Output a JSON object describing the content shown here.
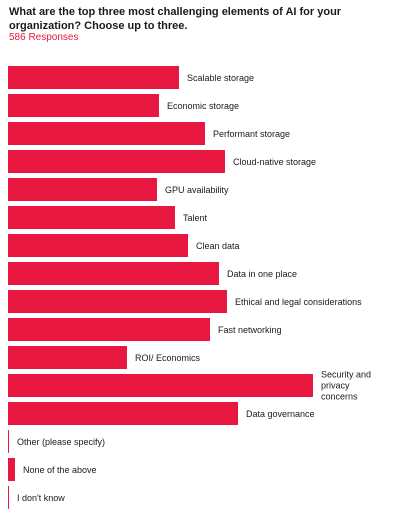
{
  "chart_data": {
    "type": "bar",
    "orientation": "horizontal",
    "title": "What are the top three most challenging elements of AI for your organization? Choose up to three.",
    "subtitle": "586 Responses",
    "bar_color": "#e8173f",
    "categories": [
      "Scalable storage",
      "Economic storage",
      "Performant storage",
      "Cloud-native storage",
      "GPU availability",
      "Talent",
      "Clean data",
      "Data in one place",
      "Ethical and legal considerations",
      "Fast networking",
      "ROI/ Economics",
      "Security and privacy concerns",
      "Data governance",
      "Other (please specify)",
      "None of the above",
      "I don't know"
    ],
    "values": [
      171,
      151,
      197,
      217,
      149,
      167,
      180,
      211,
      219,
      202,
      119,
      305,
      230,
      1,
      7,
      1
    ],
    "xlim": [
      0,
      305
    ],
    "grid": false,
    "legend": "none"
  }
}
